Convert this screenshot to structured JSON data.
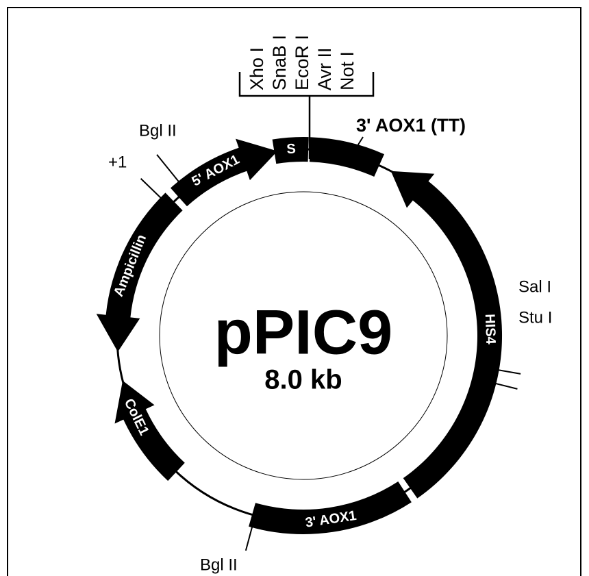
{
  "plasmid": {
    "name": "pPIC9",
    "size": "8.0 kb"
  },
  "features": [
    {
      "label": "S"
    },
    {
      "label": "3' AOX1 (TT)"
    },
    {
      "label": "HIS4"
    },
    {
      "label": "3' AOX1"
    },
    {
      "label": "ColE1"
    },
    {
      "label": "Ampicillin"
    },
    {
      "label": "5' AOX1"
    }
  ],
  "sites": [
    "+1",
    "Bgl II",
    "Sal I",
    "Stu I",
    "Bgl II"
  ],
  "mcs": [
    "Xho I",
    "SnaB I",
    "EcoR I",
    "Avr II",
    "Not I"
  ]
}
